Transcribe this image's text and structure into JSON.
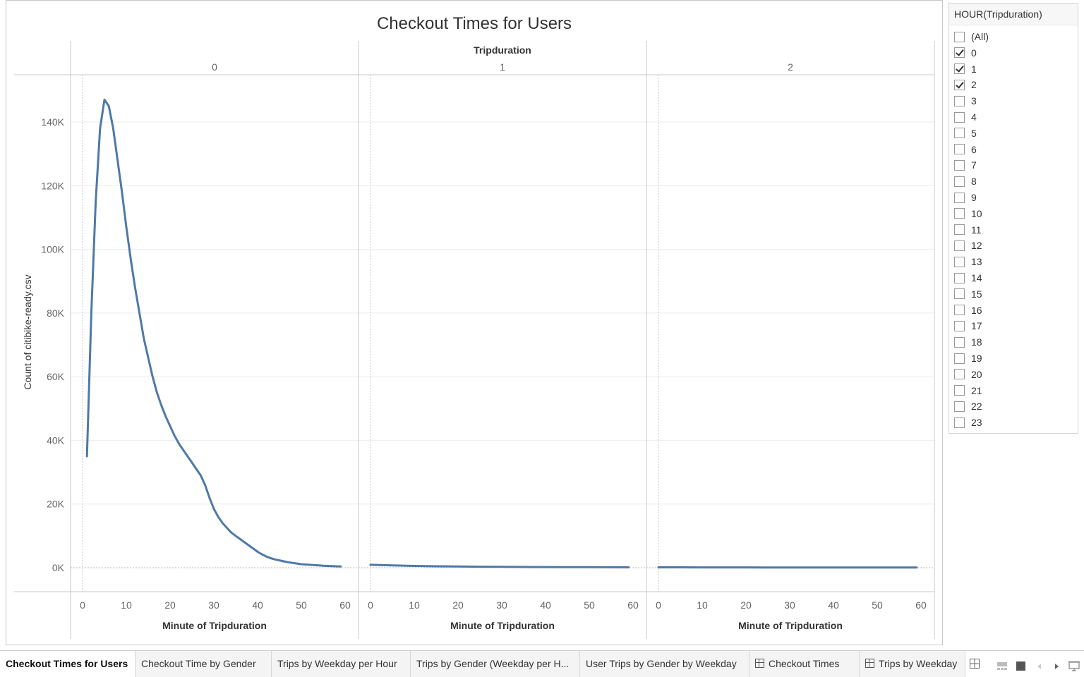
{
  "colors": {
    "line": "#4e79a7",
    "grid": "#ececec",
    "axis": "#c8c8c8",
    "text": "#666666"
  },
  "chart_data": {
    "type": "line",
    "title": "Checkout Times for Users",
    "column_header": "Tripduration",
    "ylabel": "Count of citibike-ready.csv",
    "xlabel": "Minute of Tripduration",
    "ylim": [
      0,
      150000
    ],
    "y_ticks": [
      0,
      20000,
      40000,
      60000,
      80000,
      100000,
      120000,
      140000
    ],
    "y_tick_labels": [
      "0K",
      "20K",
      "40K",
      "60K",
      "80K",
      "100K",
      "120K",
      "140K"
    ],
    "x_ticks": [
      0,
      10,
      20,
      30,
      40,
      50,
      60
    ],
    "xlim": [
      -2,
      62
    ],
    "grid": true,
    "panels": [
      {
        "label": "0",
        "series": [
          {
            "x": [
              1,
              2,
              3,
              4,
              5,
              6,
              7,
              8,
              9,
              10,
              11,
              12,
              13,
              14,
              15,
              16,
              17,
              18,
              19,
              20,
              21,
              22,
              23,
              24,
              25,
              26,
              27,
              28,
              29,
              30,
              31,
              32,
              33,
              34,
              35,
              36,
              37,
              38,
              39,
              40,
              41,
              42,
              43,
              44,
              45,
              46,
              47,
              48,
              49,
              50,
              51,
              52,
              53,
              54,
              55,
              56,
              57,
              58,
              59
            ],
            "y": [
              35000,
              80000,
              115000,
              138000,
              147000,
              145000,
              138000,
              128000,
              118000,
              107000,
              97000,
              88000,
              80000,
              72000,
              66000,
              60000,
              55000,
              51000,
              47500,
              44500,
              41500,
              39000,
              37000,
              35000,
              33000,
              31000,
              29000,
              26000,
              22000,
              18500,
              16000,
              14000,
              12500,
              11000,
              10000,
              9000,
              8000,
              7000,
              6000,
              5000,
              4200,
              3500,
              3000,
              2600,
              2300,
              2000,
              1700,
              1500,
              1300,
              1100,
              1000,
              900,
              800,
              700,
              600,
              550,
              500,
              450,
              400
            ]
          }
        ]
      },
      {
        "label": "1",
        "series": [
          {
            "x": [
              0,
              5,
              10,
              15,
              20,
              25,
              30,
              35,
              40,
              45,
              50,
              55,
              59
            ],
            "y": [
              900,
              700,
              550,
              450,
              380,
              320,
              270,
              230,
              200,
              170,
              150,
              130,
              120
            ]
          }
        ]
      },
      {
        "label": "2",
        "series": [
          {
            "x": [
              0,
              5,
              10,
              15,
              20,
              25,
              30,
              35,
              40,
              45,
              50,
              55,
              59
            ],
            "y": [
              110,
              100,
              90,
              85,
              80,
              75,
              70,
              65,
              60,
              55,
              50,
              45,
              40
            ]
          }
        ]
      }
    ]
  },
  "filter": {
    "title": "HOUR(Tripduration)",
    "items": [
      {
        "label": "(All)",
        "checked": false
      },
      {
        "label": "0",
        "checked": true
      },
      {
        "label": "1",
        "checked": true
      },
      {
        "label": "2",
        "checked": true
      },
      {
        "label": "3",
        "checked": false
      },
      {
        "label": "4",
        "checked": false
      },
      {
        "label": "5",
        "checked": false
      },
      {
        "label": "6",
        "checked": false
      },
      {
        "label": "7",
        "checked": false
      },
      {
        "label": "8",
        "checked": false
      },
      {
        "label": "9",
        "checked": false
      },
      {
        "label": "10",
        "checked": false
      },
      {
        "label": "11",
        "checked": false
      },
      {
        "label": "12",
        "checked": false
      },
      {
        "label": "13",
        "checked": false
      },
      {
        "label": "14",
        "checked": false
      },
      {
        "label": "15",
        "checked": false
      },
      {
        "label": "16",
        "checked": false
      },
      {
        "label": "17",
        "checked": false
      },
      {
        "label": "18",
        "checked": false
      },
      {
        "label": "19",
        "checked": false
      },
      {
        "label": "20",
        "checked": false
      },
      {
        "label": "21",
        "checked": false
      },
      {
        "label": "22",
        "checked": false
      },
      {
        "label": "23",
        "checked": false
      }
    ]
  },
  "tabs": [
    {
      "label": "Checkout Times for Users",
      "active": true,
      "icon": ""
    },
    {
      "label": "Checkout Time by Gender",
      "active": false,
      "icon": ""
    },
    {
      "label": "Trips by Weekday per Hour",
      "active": false,
      "icon": ""
    },
    {
      "label": "Trips by Gender (Weekday per H...",
      "active": false,
      "icon": ""
    },
    {
      "label": "User Trips by Gender by Weekday",
      "active": false,
      "icon": ""
    },
    {
      "label": "Checkout Times",
      "active": false,
      "icon": "dashboard-icon"
    },
    {
      "label": "Trips by Weekday",
      "active": false,
      "icon": "dashboard-icon"
    }
  ]
}
